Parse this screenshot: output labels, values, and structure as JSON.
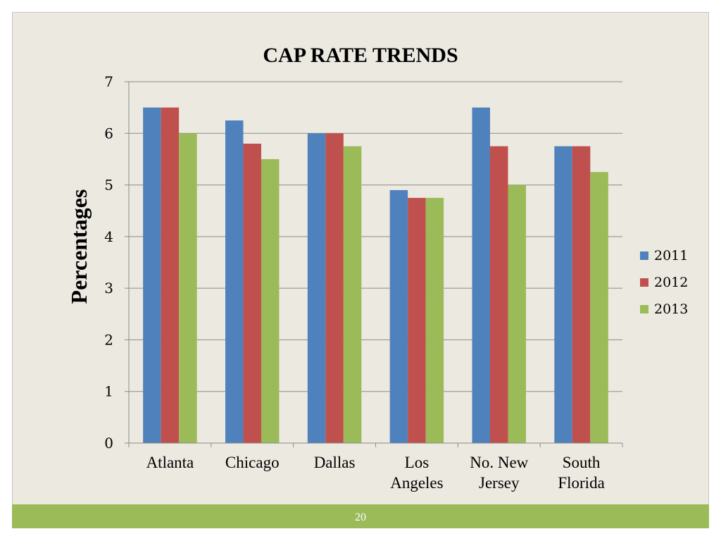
{
  "slide": {
    "number": "20"
  },
  "chart_data": {
    "type": "bar",
    "title": "CAP RATE TRENDS",
    "xlabel": "",
    "ylabel": "Percentages",
    "ylim": [
      0,
      7
    ],
    "yticks": [
      "0",
      "1",
      "2",
      "3",
      "4",
      "5",
      "6",
      "7"
    ],
    "grid": true,
    "legend_position": "right",
    "categories": [
      [
        "Atlanta"
      ],
      [
        "Chicago"
      ],
      [
        "Dallas"
      ],
      [
        "Los",
        "Angeles"
      ],
      [
        "No. New",
        "Jersey"
      ],
      [
        "South",
        "Florida"
      ]
    ],
    "series": [
      {
        "name": "2011",
        "color": "#4f81bd",
        "values": [
          6.5,
          6.25,
          6.0,
          4.9,
          6.5,
          5.75
        ]
      },
      {
        "name": "2012",
        "color": "#c0504d",
        "values": [
          6.5,
          5.8,
          6.0,
          4.75,
          5.75,
          5.75
        ]
      },
      {
        "name": "2013",
        "color": "#9bbb59",
        "values": [
          6.0,
          5.5,
          5.75,
          4.75,
          5.0,
          5.25
        ]
      }
    ]
  }
}
